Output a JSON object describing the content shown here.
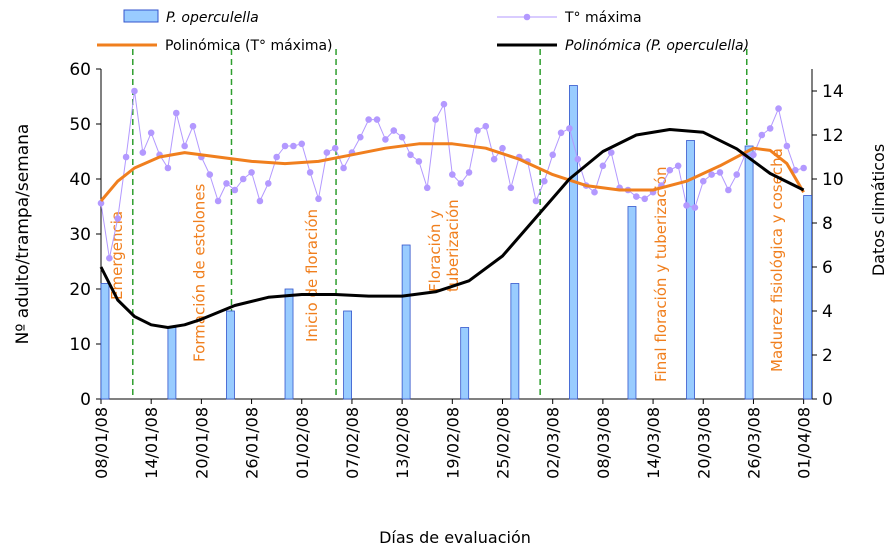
{
  "chart_data": {
    "type": "combo",
    "x_label": "Días de evaluación",
    "y_label": "Nº adulto/trampa/semana",
    "y2_label": "Datos climáticos",
    "xlim": [
      0,
      85
    ],
    "xticks": [
      {
        "value": 0,
        "label": "08/01/08"
      },
      {
        "value": 6,
        "label": "14/01/08"
      },
      {
        "value": 12,
        "label": "20/01/08"
      },
      {
        "value": 18,
        "label": "26/01/08"
      },
      {
        "value": 24,
        "label": "01/02/08"
      },
      {
        "value": 30,
        "label": "07/02/08"
      },
      {
        "value": 36,
        "label": "13/02/08"
      },
      {
        "value": 42,
        "label": "19/02/08"
      },
      {
        "value": 48,
        "label": "25/02/08"
      },
      {
        "value": 54,
        "label": "02/03/08"
      },
      {
        "value": 60,
        "label": "08/03/08"
      },
      {
        "value": 66,
        "label": "14/03/08"
      },
      {
        "value": 72,
        "label": "20/03/08"
      },
      {
        "value": 78,
        "label": "26/03/08"
      },
      {
        "value": 84,
        "label": "01/04/08"
      }
    ],
    "ylim": [
      0,
      60
    ],
    "yticks": [
      0,
      10,
      20,
      30,
      40,
      50,
      60
    ],
    "y2lim": [
      0,
      15
    ],
    "y2ticks": [
      0,
      2,
      4,
      6,
      8,
      10,
      12,
      14
    ],
    "series": [
      {
        "name": "P. operculella",
        "kind": "bar",
        "color": "#99ccff",
        "x": [
          0,
          8,
          15,
          22,
          29,
          36,
          43,
          49,
          56,
          63,
          70,
          77,
          84
        ],
        "values": [
          21,
          13,
          16,
          20,
          16,
          28,
          13,
          21,
          57,
          35,
          47,
          46,
          37
        ]
      },
      {
        "name": "T° máxima",
        "kind": "line-marker",
        "axis": "y2",
        "color": "#b399ff",
        "x": [
          0,
          1,
          2,
          3,
          4,
          5,
          6,
          7,
          8,
          9,
          10,
          11,
          12,
          13,
          14,
          15,
          16,
          17,
          18,
          19,
          20,
          21,
          22,
          23,
          24,
          25,
          26,
          27,
          28,
          29,
          30,
          31,
          32,
          33,
          34,
          35,
          36,
          37,
          38,
          39,
          40,
          41,
          42,
          43,
          44,
          45,
          46,
          47,
          48,
          49,
          50,
          51,
          52,
          53,
          54,
          55,
          56,
          57,
          58,
          59,
          60,
          61,
          62,
          63,
          64,
          65,
          66,
          67,
          68,
          69,
          70,
          71,
          72,
          73,
          74,
          75,
          76,
          77,
          78,
          79,
          80,
          81,
          82,
          83,
          84
        ],
        "values": [
          8.9,
          6.4,
          8.2,
          11,
          14,
          11.2,
          12.1,
          11.1,
          10.5,
          13,
          11.5,
          12.4,
          11,
          10.2,
          9,
          9.8,
          9.5,
          10,
          10.3,
          9,
          9.8,
          11,
          11.5,
          11.5,
          11.6,
          10.3,
          9.1,
          11.2,
          11.4,
          10.5,
          11.2,
          11.9,
          12.7,
          12.7,
          11.8,
          12.2,
          11.9,
          11.1,
          10.8,
          9.6,
          12.7,
          13.4,
          10.2,
          9.8,
          10.3,
          12.2,
          12.4,
          10.9,
          11.4,
          9.6,
          11,
          10.8,
          9,
          9.9,
          11.1,
          12.1,
          12.3,
          10.9,
          9.7,
          9.4,
          10.6,
          11.2,
          9.6,
          9.5,
          9.2,
          9.1,
          9.4,
          9.7,
          10.4,
          10.6,
          8.8,
          8.7,
          9.9,
          10.2,
          10.3,
          9.5,
          10.2,
          11.1,
          11.1,
          12,
          12.3,
          13.2,
          11.5,
          10.4,
          10.5
        ]
      },
      {
        "name": "Polinómica (T° máxima)",
        "kind": "line",
        "axis": "y2",
        "color": "#f07f1e",
        "x": [
          0,
          2,
          4,
          7,
          10,
          14,
          18,
          22,
          26,
          30,
          34,
          38,
          42,
          46,
          50,
          54,
          58,
          62,
          66,
          70,
          74,
          78,
          80,
          82,
          84
        ],
        "values": [
          9,
          9.9,
          10.5,
          11,
          11.2,
          11,
          10.8,
          10.7,
          10.8,
          11.1,
          11.4,
          11.6,
          11.6,
          11.4,
          10.9,
          10.2,
          9.7,
          9.5,
          9.5,
          9.9,
          10.6,
          11.4,
          11.3,
          10.7,
          9.4
        ]
      },
      {
        "name": "Polinómica (P. operculella)",
        "kind": "line",
        "color": "#000000",
        "x": [
          0,
          2,
          4,
          6,
          8,
          10,
          12,
          16,
          20,
          24,
          28,
          32,
          36,
          40,
          44,
          48,
          52,
          56,
          60,
          64,
          68,
          72,
          76,
          80,
          84
        ],
        "values": [
          24,
          18,
          15,
          13.5,
          13,
          13.5,
          14.5,
          17,
          18.5,
          19,
          19,
          18.7,
          18.7,
          19.5,
          21.5,
          26,
          33,
          40,
          45,
          48,
          49,
          48.5,
          45.5,
          41,
          38
        ]
      }
    ],
    "phases": [
      {
        "x": 3.8,
        "lines": [
          "Emergencia"
        ]
      },
      {
        "x": 15.6,
        "lines": [
          "Formación de estolones"
        ]
      },
      {
        "x": 28.1,
        "lines": [
          "Inicio de floración"
        ]
      },
      {
        "x": 52.5,
        "lines": [
          "Floración y",
          "tuberización"
        ]
      },
      {
        "x": 77.2,
        "lines": [
          "Final floración y tuberización"
        ]
      },
      {
        "x": 77.2,
        "lines": [
          "Madurez fisiológica y cosecha"
        ]
      }
    ],
    "phase_color": "#2e9e2e",
    "phase_label_color": "#f07f1e"
  }
}
